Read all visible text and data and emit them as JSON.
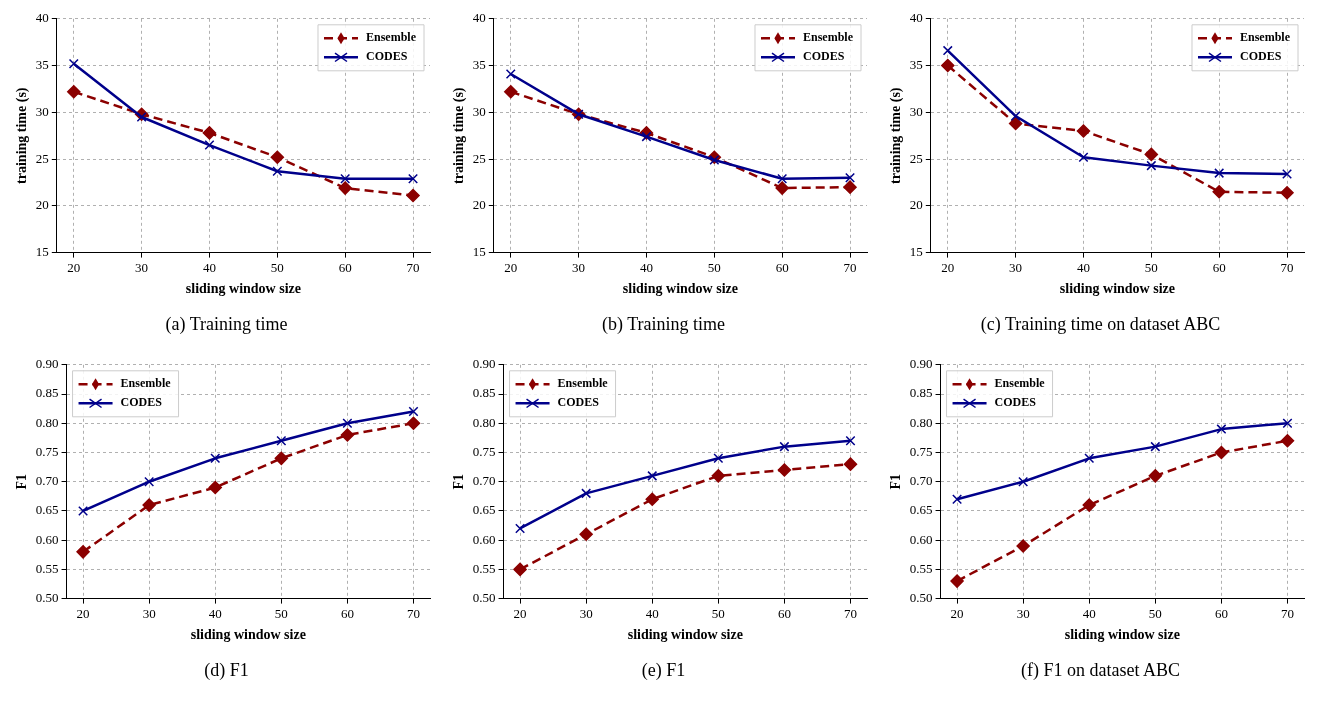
{
  "chart_data": [
    {
      "type": "line",
      "xlabel": "sliding window size",
      "ylabel": "training time (s)",
      "annotations": [
        "(a) Training time"
      ],
      "x": [
        20,
        30,
        40,
        50,
        60,
        70
      ],
      "xlim": [
        17.5,
        72.5
      ],
      "xticks": [
        20,
        30,
        40,
        50,
        60,
        70
      ],
      "ylim": [
        15,
        40
      ],
      "yticks": [
        15,
        20,
        25,
        30,
        35,
        40
      ],
      "grid": true,
      "legend": "top right",
      "series": [
        {
          "name": "Ensemble",
          "color": "#8b0000",
          "marker": "diamond",
          "line_style": "dashed",
          "values": [
            32.2,
            29.8,
            27.8,
            25.2,
            21.9,
            21.1
          ]
        },
        {
          "name": "CODES",
          "color": "#00008b",
          "marker": "cross",
          "line_style": "solid",
          "values": [
            35.2,
            29.5,
            26.5,
            23.7,
            22.9,
            22.9
          ]
        }
      ]
    },
    {
      "type": "line",
      "xlabel": "sliding window size",
      "ylabel": "training time (s)",
      "annotations": [
        "(b) Training time"
      ],
      "x": [
        20,
        30,
        40,
        50,
        60,
        70
      ],
      "xlim": [
        17.5,
        72.5
      ],
      "xticks": [
        20,
        30,
        40,
        50,
        60,
        70
      ],
      "ylim": [
        15,
        40
      ],
      "yticks": [
        15,
        20,
        25,
        30,
        35,
        40
      ],
      "grid": true,
      "legend": "top right",
      "series": [
        {
          "name": "Ensemble",
          "color": "#8b0000",
          "marker": "diamond",
          "line_style": "dashed",
          "values": [
            32.2,
            29.8,
            27.8,
            25.2,
            21.9,
            22.0
          ]
        },
        {
          "name": "CODES",
          "color": "#00008b",
          "marker": "cross",
          "line_style": "solid",
          "values": [
            34.1,
            29.8,
            27.4,
            24.9,
            22.9,
            23.0
          ]
        }
      ]
    },
    {
      "type": "line",
      "xlabel": "sliding window size",
      "ylabel": "training time (s)",
      "annotations": [
        "(c) Training time on dataset ABC"
      ],
      "x": [
        20,
        30,
        40,
        50,
        60,
        70
      ],
      "xlim": [
        17.5,
        72.5
      ],
      "xticks": [
        20,
        30,
        40,
        50,
        60,
        70
      ],
      "ylim": [
        15,
        40
      ],
      "yticks": [
        15,
        20,
        25,
        30,
        35,
        40
      ],
      "grid": true,
      "legend": "top right",
      "series": [
        {
          "name": "Ensemble",
          "color": "#8b0000",
          "marker": "diamond",
          "line_style": "dashed",
          "values": [
            35.0,
            28.8,
            28.0,
            25.5,
            21.5,
            21.4
          ]
        },
        {
          "name": "CODES",
          "color": "#00008b",
          "marker": "cross",
          "line_style": "solid",
          "values": [
            36.6,
            29.6,
            25.2,
            24.3,
            23.5,
            23.4
          ]
        }
      ]
    },
    {
      "type": "line",
      "xlabel": "sliding window size",
      "ylabel": "F1",
      "annotations": [
        "(d) F1"
      ],
      "x": [
        20,
        30,
        40,
        50,
        60,
        70
      ],
      "xlim": [
        17.5,
        72.5
      ],
      "xticks": [
        20,
        30,
        40,
        50,
        60,
        70
      ],
      "ylim": [
        0.5,
        0.9
      ],
      "yticks": [
        {
          "value": 0.5,
          "label": "0.50"
        },
        {
          "value": 0.55,
          "label": "0.55"
        },
        {
          "value": 0.6,
          "label": "0.60"
        },
        {
          "value": 0.65,
          "label": "0.65"
        },
        {
          "value": 0.7,
          "label": "0.70"
        },
        {
          "value": 0.75,
          "label": "0.75"
        },
        {
          "value": 0.8,
          "label": "0.80"
        },
        {
          "value": 0.85,
          "label": "0.85"
        },
        {
          "value": 0.9,
          "label": "0.90"
        }
      ],
      "grid": true,
      "legend": "top left",
      "series": [
        {
          "name": "Ensemble",
          "color": "#8b0000",
          "marker": "diamond",
          "line_style": "dashed",
          "values": [
            0.58,
            0.66,
            0.69,
            0.74,
            0.78,
            0.8
          ]
        },
        {
          "name": "CODES",
          "color": "#00008b",
          "marker": "cross",
          "line_style": "solid",
          "values": [
            0.65,
            0.7,
            0.74,
            0.77,
            0.8,
            0.82
          ]
        }
      ]
    },
    {
      "type": "line",
      "xlabel": "sliding window size",
      "ylabel": "F1",
      "annotations": [
        "(e) F1"
      ],
      "x": [
        20,
        30,
        40,
        50,
        60,
        70
      ],
      "xlim": [
        17.5,
        72.5
      ],
      "xticks": [
        20,
        30,
        40,
        50,
        60,
        70
      ],
      "ylim": [
        0.5,
        0.9
      ],
      "yticks": [
        {
          "value": 0.5,
          "label": "0.50"
        },
        {
          "value": 0.55,
          "label": "0.55"
        },
        {
          "value": 0.6,
          "label": "0.60"
        },
        {
          "value": 0.65,
          "label": "0.65"
        },
        {
          "value": 0.7,
          "label": "0.70"
        },
        {
          "value": 0.75,
          "label": "0.75"
        },
        {
          "value": 0.8,
          "label": "0.80"
        },
        {
          "value": 0.85,
          "label": "0.85"
        },
        {
          "value": 0.9,
          "label": "0.90"
        }
      ],
      "grid": true,
      "legend": "top left",
      "series": [
        {
          "name": "Ensemble",
          "color": "#8b0000",
          "marker": "diamond",
          "line_style": "dashed",
          "values": [
            0.55,
            0.61,
            0.67,
            0.71,
            0.72,
            0.73
          ]
        },
        {
          "name": "CODES",
          "color": "#00008b",
          "marker": "cross",
          "line_style": "solid",
          "values": [
            0.62,
            0.68,
            0.71,
            0.74,
            0.76,
            0.77
          ]
        }
      ]
    },
    {
      "type": "line",
      "xlabel": "sliding window size",
      "ylabel": "F1",
      "annotations": [
        "(f) F1 on dataset ABC"
      ],
      "x": [
        20,
        30,
        40,
        50,
        60,
        70
      ],
      "xlim": [
        17.5,
        72.5
      ],
      "xticks": [
        20,
        30,
        40,
        50,
        60,
        70
      ],
      "ylim": [
        0.5,
        0.9
      ],
      "yticks": [
        {
          "value": 0.5,
          "label": "0.50"
        },
        {
          "value": 0.55,
          "label": "0.55"
        },
        {
          "value": 0.6,
          "label": "0.60"
        },
        {
          "value": 0.65,
          "label": "0.65"
        },
        {
          "value": 0.7,
          "label": "0.70"
        },
        {
          "value": 0.75,
          "label": "0.75"
        },
        {
          "value": 0.8,
          "label": "0.80"
        },
        {
          "value": 0.85,
          "label": "0.85"
        },
        {
          "value": 0.9,
          "label": "0.90"
        }
      ],
      "grid": true,
      "legend": "top left",
      "series": [
        {
          "name": "Ensemble",
          "color": "#8b0000",
          "marker": "diamond",
          "line_style": "dashed",
          "values": [
            0.53,
            0.59,
            0.66,
            0.71,
            0.75,
            0.77
          ]
        },
        {
          "name": "CODES",
          "color": "#00008b",
          "marker": "cross",
          "line_style": "solid",
          "values": [
            0.67,
            0.7,
            0.74,
            0.76,
            0.79,
            0.8
          ]
        }
      ]
    }
  ]
}
